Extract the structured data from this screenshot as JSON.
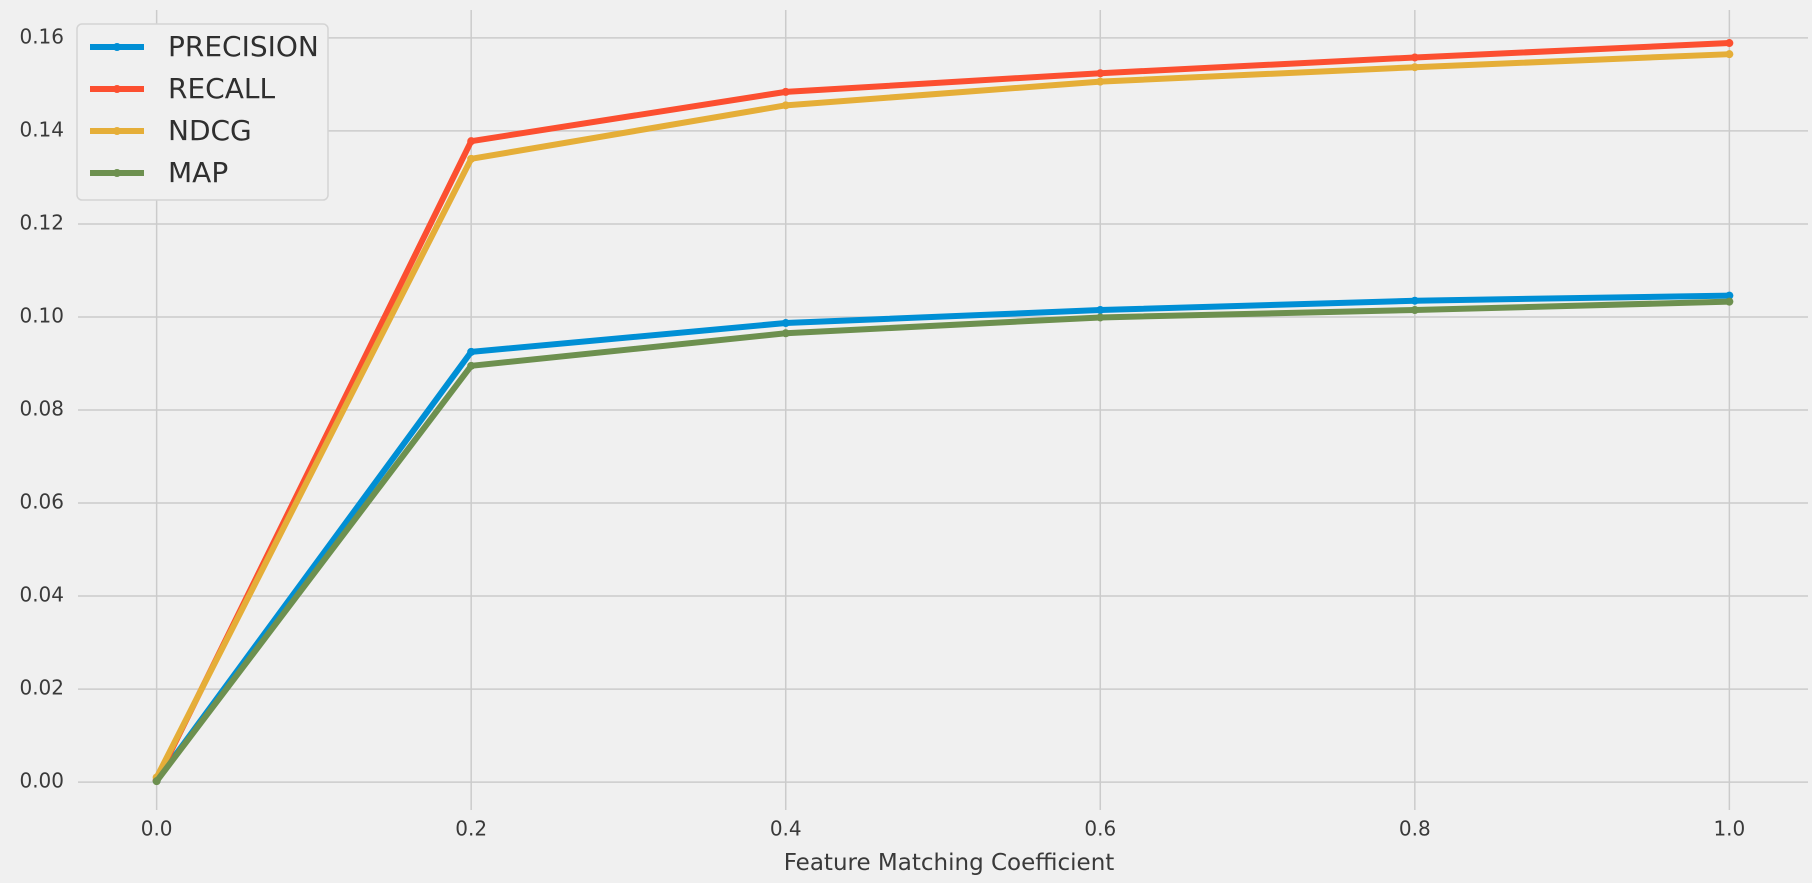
{
  "chart_data": {
    "type": "line",
    "title": "",
    "xlabel": "Feature Matching Coefficient",
    "ylabel": "",
    "x": [
      0.0,
      0.2,
      0.4,
      0.6,
      0.8,
      1.0
    ],
    "xlim": [
      -0.05,
      1.05
    ],
    "ylim": [
      -0.006,
      0.166
    ],
    "xticks": [
      "0.0",
      "0.2",
      "0.4",
      "0.6",
      "0.8",
      "1.0"
    ],
    "yticks": [
      "0.00",
      "0.02",
      "0.04",
      "0.06",
      "0.08",
      "0.10",
      "0.12",
      "0.14",
      "0.16"
    ],
    "grid": true,
    "legend_position": "top-left",
    "series": [
      {
        "name": "PRECISION",
        "color": "#008fd5",
        "values": [
          0.0003,
          0.0925,
          0.0987,
          0.1015,
          0.1035,
          0.1046
        ]
      },
      {
        "name": "RECALL",
        "color": "#fc4f30",
        "values": [
          0.0004,
          0.1378,
          0.1484,
          0.1524,
          0.1558,
          0.1589
        ]
      },
      {
        "name": "NDCG",
        "color": "#e5ae38",
        "values": [
          0.001,
          0.134,
          0.1455,
          0.1506,
          0.1537,
          0.1565
        ]
      },
      {
        "name": "MAP",
        "color": "#6d904f",
        "values": [
          0.0002,
          0.0895,
          0.0965,
          0.0999,
          0.1015,
          0.1033
        ]
      }
    ]
  }
}
